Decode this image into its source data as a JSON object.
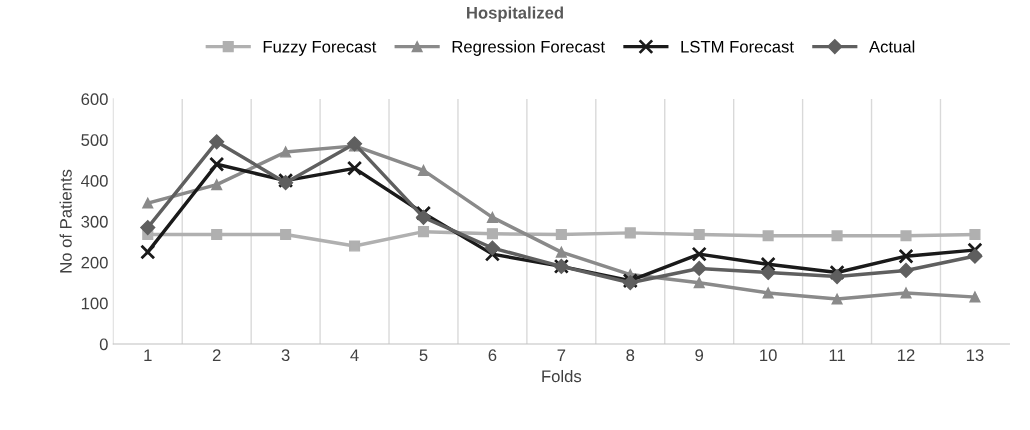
{
  "chart_data": {
    "type": "line",
    "title": "Hospitalized",
    "xlabel": "Folds",
    "ylabel": "No of Patients",
    "categories": [
      "1",
      "2",
      "3",
      "4",
      "5",
      "6",
      "7",
      "8",
      "9",
      "10",
      "11",
      "12",
      "13"
    ],
    "series": [
      {
        "name": "Fuzzy Forecast",
        "color": "#b0b0b0",
        "marker": "square",
        "values": [
          268,
          268,
          268,
          240,
          275,
          270,
          268,
          272,
          268,
          265,
          265,
          265,
          268
        ]
      },
      {
        "name": "Regression Forecast",
        "color": "#8a8a8a",
        "marker": "triangle",
        "values": [
          345,
          390,
          470,
          485,
          425,
          310,
          225,
          170,
          150,
          125,
          110,
          125,
          115
        ]
      },
      {
        "name": "LSTM Forecast",
        "color": "#1a1a1a",
        "marker": "cross",
        "values": [
          225,
          440,
          400,
          430,
          320,
          220,
          190,
          155,
          220,
          195,
          175,
          215,
          230
        ]
      },
      {
        "name": "Actual",
        "color": "#5f5f5f",
        "marker": "diamond",
        "values": [
          285,
          495,
          395,
          490,
          310,
          235,
          190,
          150,
          185,
          175,
          165,
          180,
          215
        ]
      }
    ],
    "ylim": [
      0,
      600
    ],
    "yticks": [
      0,
      100,
      200,
      300,
      400,
      500,
      600
    ],
    "grid": "x",
    "legend": "top"
  }
}
